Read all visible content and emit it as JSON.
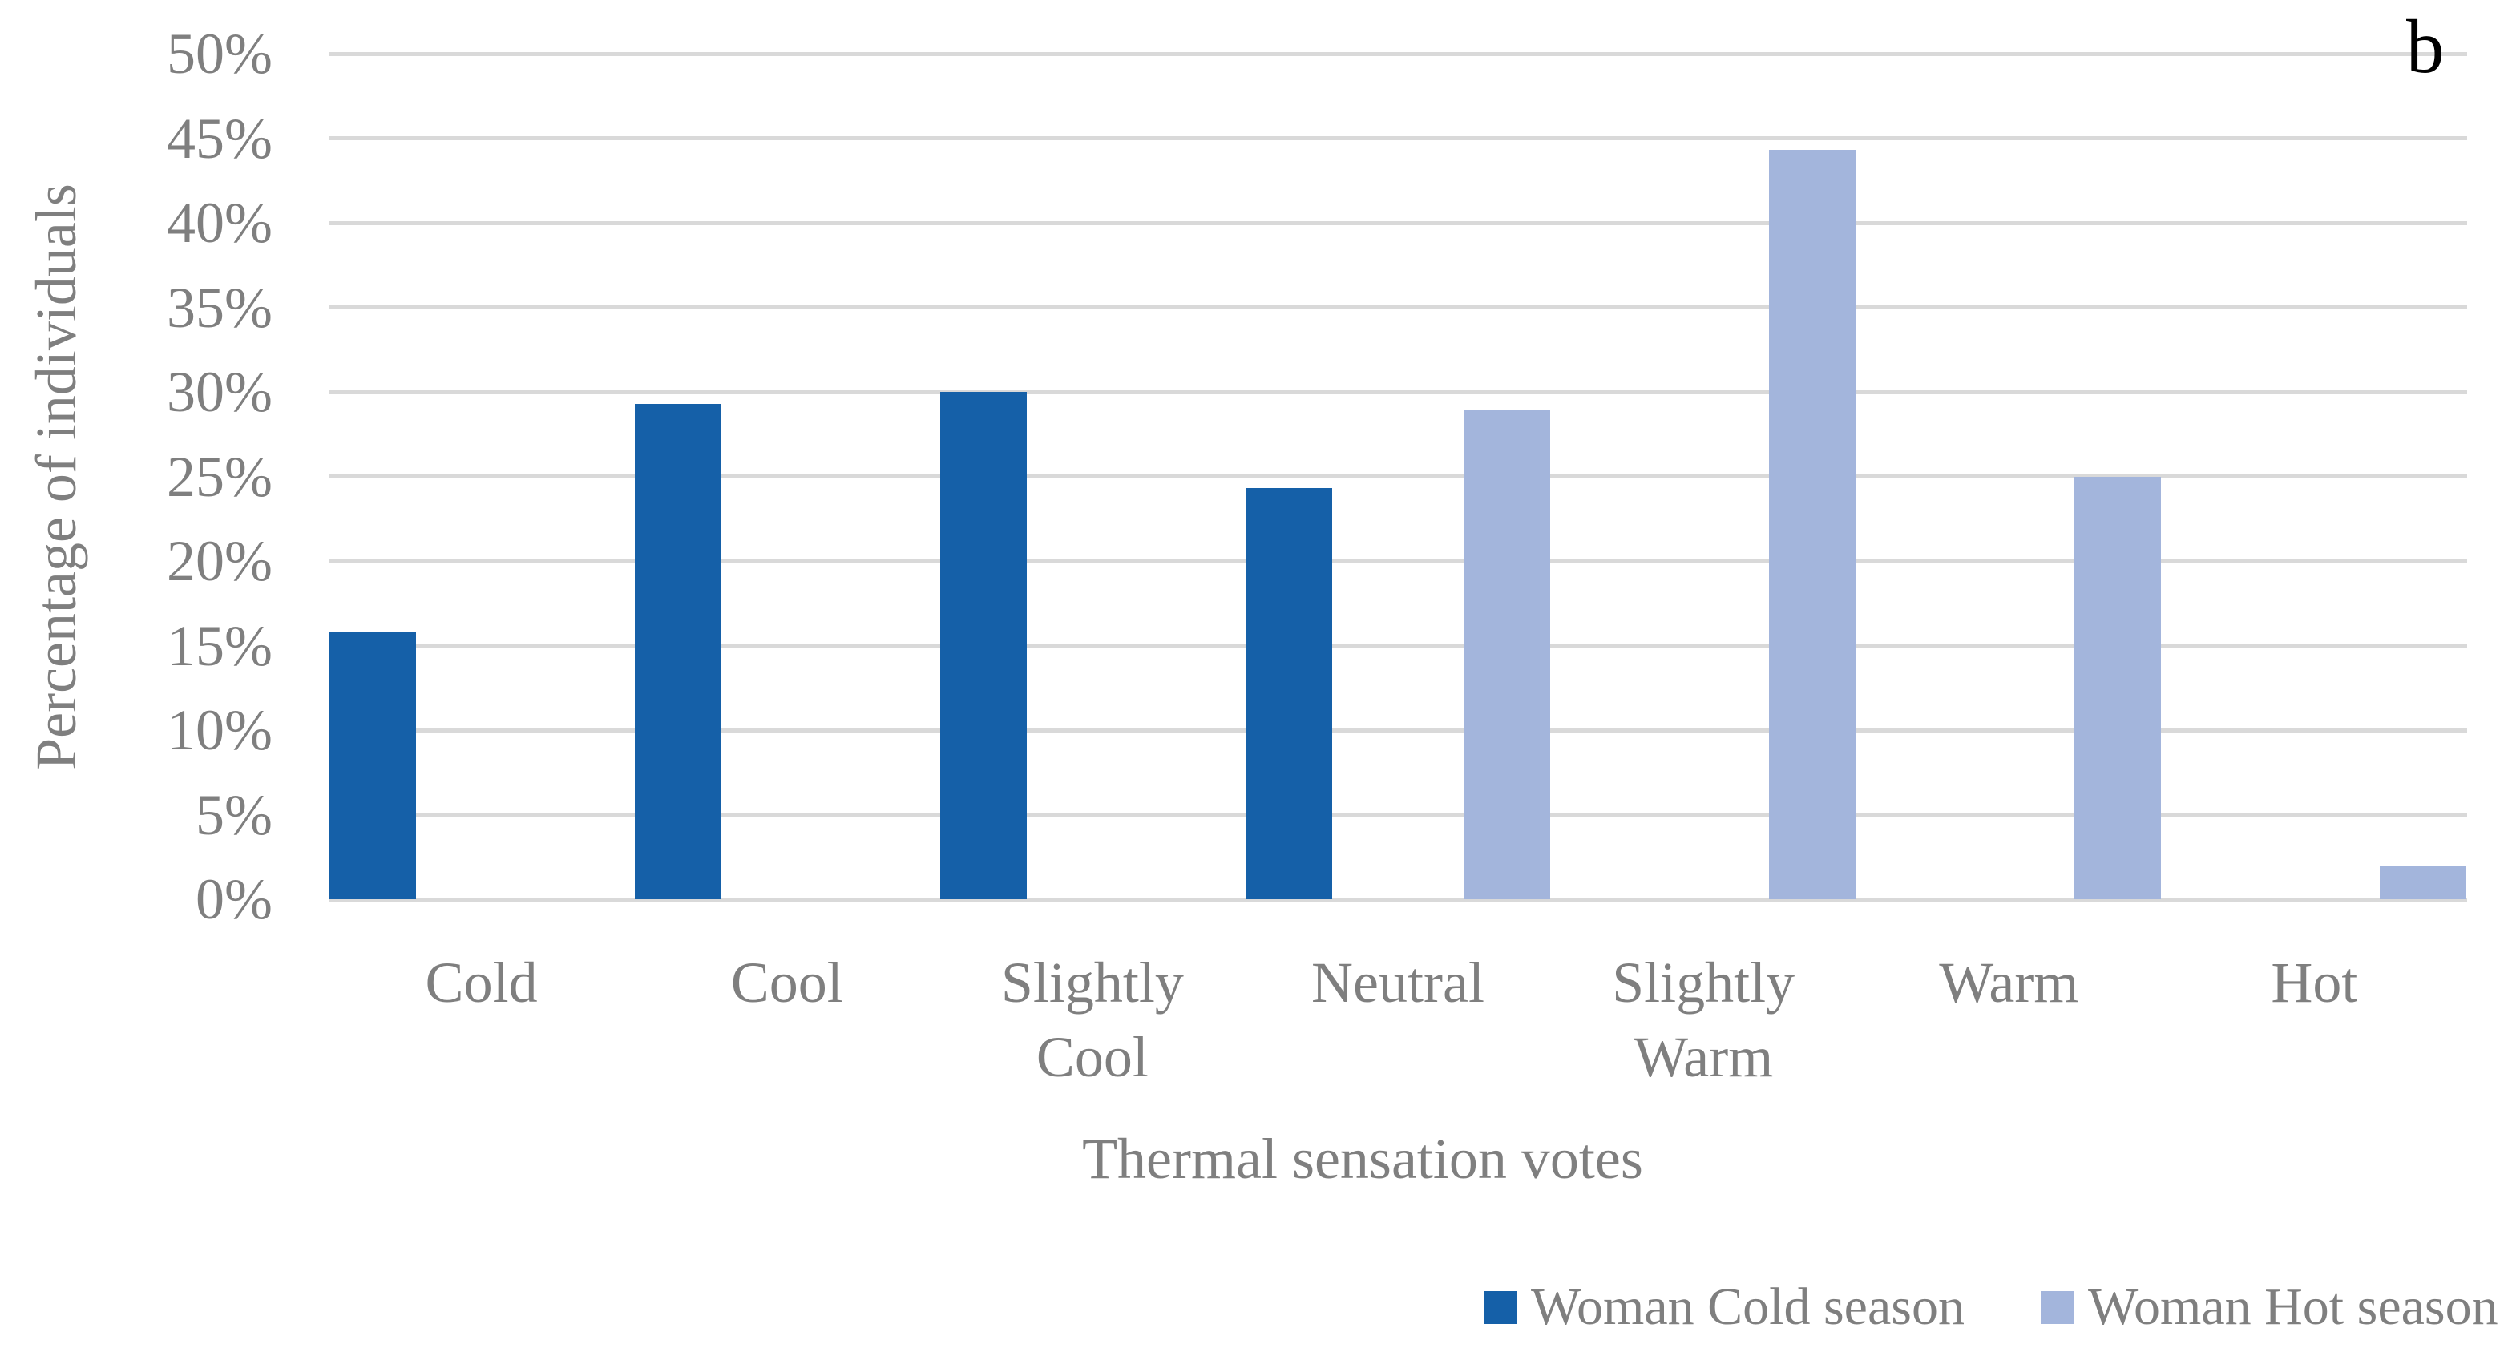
{
  "chart_data": {
    "type": "bar",
    "panel_label": "b",
    "categories": [
      "Cold",
      "Cool",
      "Slightly Cool",
      "Neutral",
      "Slightly Warm",
      "Warm",
      "Hot"
    ],
    "series": [
      {
        "name": "Woman Cold season",
        "color": "#1560A8",
        "values": [
          15.8,
          29.3,
          30.0,
          24.3,
          0,
          0,
          0
        ]
      },
      {
        "name": "Woman Hot season",
        "color": "#A3B5DC",
        "values": [
          0,
          0,
          0,
          28.9,
          44.3,
          25.0,
          2.0
        ]
      }
    ],
    "xlabel": "Thermal sensation votes",
    "ylabel": "Percentage of individuals",
    "ylim": [
      0,
      50
    ],
    "ytick_step": 5,
    "ytick_labels": [
      "0%",
      "5%",
      "10%",
      "15%",
      "20%",
      "25%",
      "30%",
      "35%",
      "40%",
      "45%",
      "50%"
    ],
    "grid": "horizontal",
    "legend_position": "bottom-right"
  },
  "colors": {
    "grid": "#D9D9D9",
    "axis_text": "#7F7F7F",
    "panel_label": "#000000",
    "background": "#FFFFFF"
  }
}
